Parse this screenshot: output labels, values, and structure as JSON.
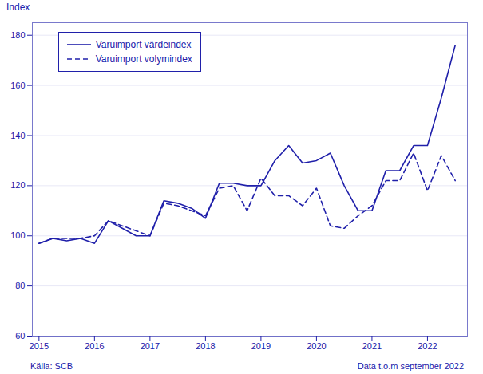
{
  "chart_data": {
    "type": "line",
    "ylabel": "Index",
    "color": "#2020AA",
    "x": [
      2015.0,
      2015.25,
      2015.5,
      2015.75,
      2016.0,
      2016.25,
      2016.5,
      2016.75,
      2017.0,
      2017.25,
      2017.5,
      2017.75,
      2018.0,
      2018.25,
      2018.5,
      2018.75,
      2019.0,
      2019.25,
      2019.5,
      2019.75,
      2020.0,
      2020.25,
      2020.5,
      2020.75,
      2021.0,
      2021.25,
      2021.5,
      2021.75,
      2022.0,
      2022.25,
      2022.5
    ],
    "series": [
      {
        "name": "Varuimport värdeindex",
        "line_style": "solid",
        "values": [
          97,
          99,
          98,
          99,
          97,
          106,
          103,
          100,
          100,
          114,
          113,
          111,
          107,
          121,
          121,
          120,
          120,
          130,
          136,
          129,
          130,
          133,
          120,
          110,
          110,
          126,
          126,
          136,
          136,
          155,
          176
        ]
      },
      {
        "name": "Varuimport volymindex",
        "line_style": "dashed",
        "values": [
          97,
          99,
          99,
          99,
          100,
          106,
          104,
          102,
          100,
          113,
          112,
          110,
          108,
          119,
          120,
          110,
          123,
          116,
          116,
          112,
          119,
          104,
          103,
          108,
          112,
          122,
          122,
          133,
          118,
          132,
          122
        ]
      }
    ],
    "xlim": [
      2014.88,
      2022.72
    ],
    "xticks": [
      2015,
      2016,
      2017,
      2018,
      2019,
      2020,
      2021,
      2022
    ],
    "ylim": [
      60,
      185
    ],
    "yticks": [
      60,
      80,
      100,
      120,
      140,
      160,
      180
    ],
    "grid": true,
    "legend": "upper left",
    "annotations": [
      "Källa: SCB",
      "Data t.o.m september 2022"
    ]
  }
}
